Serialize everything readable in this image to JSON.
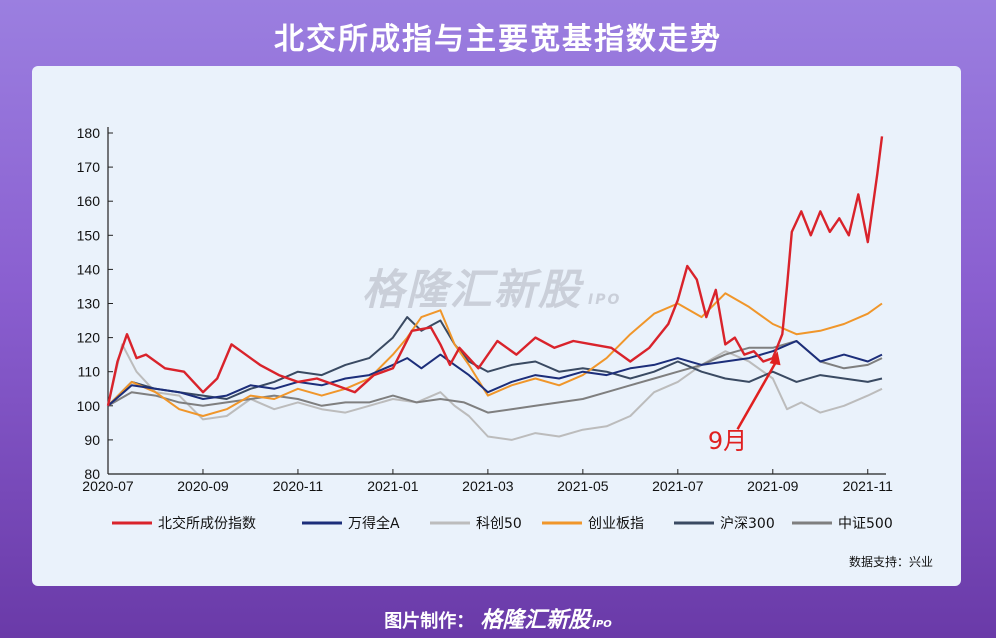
{
  "title": "北交所成指与主要宽基指数走势",
  "watermark": {
    "brand": "格隆汇新股",
    "ipo": "IPO"
  },
  "source": "数据支持：兴业",
  "footer": {
    "label": "图片制作：",
    "brand": "格隆汇新股",
    "ipo": "IPO"
  },
  "chart_data": {
    "type": "line",
    "title": "",
    "xlabel": "",
    "ylabel": "",
    "ylim": [
      80,
      180
    ],
    "yticks": [
      80,
      90,
      100,
      110,
      120,
      130,
      140,
      150,
      160,
      170,
      180
    ],
    "x_tick_labels": [
      "2020-07",
      "2020-09",
      "2020-11",
      "2021-01",
      "2021-03",
      "2021-05",
      "2021-07",
      "2021-09",
      "2021-11"
    ],
    "x_tick_months": [
      0,
      2,
      4,
      6,
      8,
      10,
      12,
      14,
      16
    ],
    "x_range_months": [
      0,
      16.3
    ],
    "x_unit": "months since 2020-07",
    "grid": false,
    "legend_position": "bottom",
    "annotation": {
      "text": "9月",
      "color": "#e02020",
      "x": 14.1,
      "y": 116
    },
    "series": [
      {
        "name": "北交所成份指数",
        "color": "#d9232b",
        "width": 2.4,
        "x": [
          0,
          0.2,
          0.4,
          0.6,
          0.8,
          1.2,
          1.6,
          2.0,
          2.3,
          2.6,
          2.8,
          3.2,
          3.6,
          4.0,
          4.4,
          4.8,
          5.2,
          5.6,
          6.0,
          6.4,
          6.8,
          7.0,
          7.2,
          7.4,
          7.8,
          8.2,
          8.6,
          9.0,
          9.4,
          9.8,
          10.2,
          10.6,
          11.0,
          11.4,
          11.8,
          12.0,
          12.2,
          12.4,
          12.6,
          12.8,
          13.0,
          13.2,
          13.4,
          13.6,
          13.8,
          14.0,
          14.2,
          14.3,
          14.4,
          14.6,
          14.8,
          15.0,
          15.2,
          15.4,
          15.6,
          15.8,
          16.0,
          16.2,
          16.3
        ],
        "y": [
          100,
          113,
          121,
          114,
          115,
          111,
          110,
          104,
          108,
          118,
          116,
          112,
          109,
          107,
          108,
          106,
          104,
          109,
          111,
          122,
          123,
          118,
          112,
          117,
          111,
          119,
          115,
          120,
          117,
          119,
          118,
          117,
          113,
          117,
          124,
          131,
          141,
          137,
          126,
          134,
          118,
          120,
          115,
          116,
          113,
          114,
          121,
          135,
          151,
          157,
          150,
          157,
          151,
          155,
          150,
          162,
          148,
          168,
          179
        ]
      },
      {
        "name": "万得全A",
        "color": "#1c2e7a",
        "width": 2.0,
        "x": [
          0,
          0.5,
          1.0,
          1.5,
          2.0,
          2.5,
          3.0,
          3.5,
          4.0,
          4.5,
          5.0,
          5.5,
          6.0,
          6.3,
          6.6,
          7.0,
          7.3,
          7.6,
          8.0,
          8.5,
          9.0,
          9.5,
          10.0,
          10.5,
          11.0,
          11.5,
          12.0,
          12.5,
          13.0,
          13.5,
          14.0,
          14.5,
          15.0,
          15.5,
          16.0,
          16.3
        ],
        "y": [
          100,
          106,
          105,
          104,
          102,
          103,
          106,
          105,
          107,
          106,
          108,
          109,
          112,
          114,
          111,
          115,
          112,
          109,
          104,
          107,
          109,
          108,
          110,
          109,
          111,
          112,
          114,
          112,
          113,
          114,
          116,
          119,
          113,
          115,
          113,
          115
        ]
      },
      {
        "name": "科创50",
        "color": "#bcbcbc",
        "width": 2.0,
        "x": [
          0,
          0.3,
          0.6,
          1.0,
          1.5,
          2.0,
          2.5,
          3.0,
          3.5,
          4.0,
          4.5,
          5.0,
          5.5,
          6.0,
          6.5,
          7.0,
          7.3,
          7.6,
          8.0,
          8.5,
          9.0,
          9.5,
          10.0,
          10.5,
          11.0,
          11.5,
          12.0,
          12.5,
          13.0,
          13.5,
          14.0,
          14.3,
          14.6,
          15.0,
          15.5,
          16.0,
          16.3
        ],
        "y": [
          100,
          118,
          110,
          104,
          103,
          96,
          97,
          102,
          99,
          101,
          99,
          98,
          100,
          102,
          101,
          104,
          100,
          97,
          91,
          90,
          92,
          91,
          93,
          94,
          97,
          104,
          107,
          112,
          116,
          113,
          108,
          99,
          101,
          98,
          100,
          103,
          105
        ]
      },
      {
        "name": "创业板指",
        "color": "#f0962a",
        "width": 2.0,
        "x": [
          0,
          0.5,
          1.0,
          1.5,
          2.0,
          2.5,
          3.0,
          3.5,
          4.0,
          4.5,
          5.0,
          5.5,
          6.0,
          6.3,
          6.6,
          7.0,
          7.3,
          7.6,
          8.0,
          8.5,
          9.0,
          9.5,
          10.0,
          10.5,
          11.0,
          11.5,
          12.0,
          12.5,
          13.0,
          13.5,
          14.0,
          14.5,
          15.0,
          15.5,
          16.0,
          16.3
        ],
        "y": [
          100,
          107,
          104,
          99,
          97,
          99,
          103,
          102,
          105,
          103,
          105,
          108,
          115,
          120,
          126,
          128,
          118,
          112,
          103,
          106,
          108,
          106,
          109,
          114,
          121,
          127,
          130,
          126,
          133,
          129,
          124,
          121,
          122,
          124,
          127,
          130
        ]
      },
      {
        "name": "沪深300",
        "color": "#3a4a62",
        "width": 2.0,
        "x": [
          0,
          0.5,
          1.0,
          1.5,
          2.0,
          2.5,
          3.0,
          3.5,
          4.0,
          4.5,
          5.0,
          5.5,
          6.0,
          6.3,
          6.6,
          7.0,
          7.3,
          7.6,
          8.0,
          8.5,
          9.0,
          9.5,
          10.0,
          10.5,
          11.0,
          11.5,
          12.0,
          12.5,
          13.0,
          13.5,
          14.0,
          14.5,
          15.0,
          15.5,
          16.0,
          16.3
        ],
        "y": [
          100,
          107,
          105,
          104,
          103,
          102,
          105,
          107,
          110,
          109,
          112,
          114,
          120,
          126,
          122,
          125,
          118,
          113,
          110,
          112,
          113,
          110,
          111,
          110,
          108,
          110,
          113,
          110,
          108,
          107,
          110,
          107,
          109,
          108,
          107,
          108
        ]
      },
      {
        "name": "中证500",
        "color": "#7f7f7f",
        "width": 2.0,
        "x": [
          0,
          0.5,
          1.0,
          1.5,
          2.0,
          2.5,
          3.0,
          3.5,
          4.0,
          4.5,
          5.0,
          5.5,
          6.0,
          6.5,
          7.0,
          7.5,
          8.0,
          8.5,
          9.0,
          9.5,
          10.0,
          10.5,
          11.0,
          11.5,
          12.0,
          12.5,
          13.0,
          13.5,
          14.0,
          14.5,
          15.0,
          15.5,
          16.0,
          16.3
        ],
        "y": [
          100,
          104,
          103,
          101,
          100,
          101,
          102,
          103,
          102,
          100,
          101,
          101,
          103,
          101,
          102,
          101,
          98,
          99,
          100,
          101,
          102,
          104,
          106,
          108,
          110,
          112,
          115,
          117,
          117,
          119,
          113,
          111,
          112,
          114
        ]
      }
    ]
  }
}
